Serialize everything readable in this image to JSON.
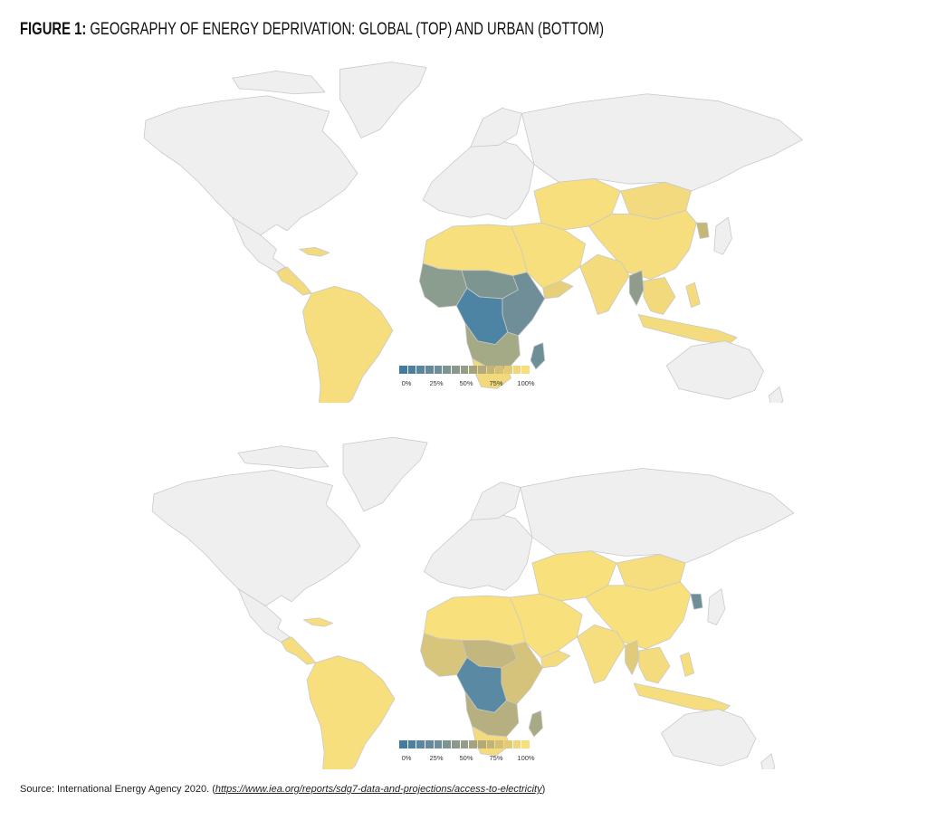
{
  "figure": {
    "label": "FIGURE 1:",
    "title": "GEOGRAPHY OF ENERGY DEPRIVATION: GLOBAL (TOP) AND URBAN (BOTTOM)"
  },
  "colors": {
    "land": "#efefef",
    "border": "#c8c8c8",
    "scale_low": "#3e789f",
    "scale_high": "#f8e07a"
  },
  "legend": {
    "ticks": [
      "0%",
      "25%",
      "50%",
      "75%",
      "100%"
    ],
    "swatches": [
      "#427aa1",
      "#4c80a0",
      "#5a879f",
      "#65899b",
      "#6f8f98",
      "#7c9593",
      "#8a998e",
      "#969d87",
      "#a3a382",
      "#b2aa7d",
      "#c2b378",
      "#d4bf76",
      "#e3ca76",
      "#f0d677",
      "#f7df7b"
    ]
  },
  "maps": [
    {
      "name": "global",
      "regions": {
        "north_america": "#efefef",
        "greenland": "#efefef",
        "europe": "#efefef",
        "russia": "#efefef",
        "australia": "#efefef",
        "south_america": "#f6dd7e",
        "central_america": "#f3da7f",
        "north_africa": "#f7df7d",
        "west_africa": "#8b9d8e",
        "sahel": "#7d9591",
        "central_africa": "#4e84a3",
        "east_africa": "#6f8e98",
        "southern_africa": "#a4aa86",
        "south_africa": "#f1d97c",
        "madagascar": "#6f8f98",
        "middle_east": "#f7df7d",
        "yemen": "#e6d07c",
        "south_asia": "#f4db7e",
        "myanmar": "#8f9c8c",
        "china": "#f6dd7e",
        "mongolia": "#f3da7f",
        "southeast_asia": "#f1d97c",
        "indonesia": "#f4db7e",
        "central_asia": "#f7df7d",
        "north_korea": "#c4b879"
      }
    },
    {
      "name": "urban",
      "regions": {
        "north_america": "#efefef",
        "greenland": "#efefef",
        "europe": "#efefef",
        "russia": "#efefef",
        "australia": "#efefef",
        "south_america": "#f7df7d",
        "central_america": "#f6dd7e",
        "north_africa": "#f8e07c",
        "west_africa": "#d8c57c",
        "sahel": "#c3b67e",
        "central_africa": "#5a8aa3",
        "east_africa": "#d5c37c",
        "southern_africa": "#b6b080",
        "south_africa": "#f4db7e",
        "madagascar": "#a8a986",
        "middle_east": "#f8e07c",
        "yemen": "#f4db7e",
        "south_asia": "#f6dd7e",
        "myanmar": "#e0cb7c",
        "china": "#f8e07c",
        "mongolia": "#f6dd7e",
        "southeast_asia": "#f4db7e",
        "indonesia": "#f6dd7e",
        "central_asia": "#f8e07c",
        "north_korea": "#6f8f98"
      }
    }
  ],
  "source": {
    "text": "Source: International Energy Agency 2020. (",
    "link": "https://www.iea.org/reports/sdg7-data-and-projections/access-to-electricity",
    "close": ")"
  }
}
